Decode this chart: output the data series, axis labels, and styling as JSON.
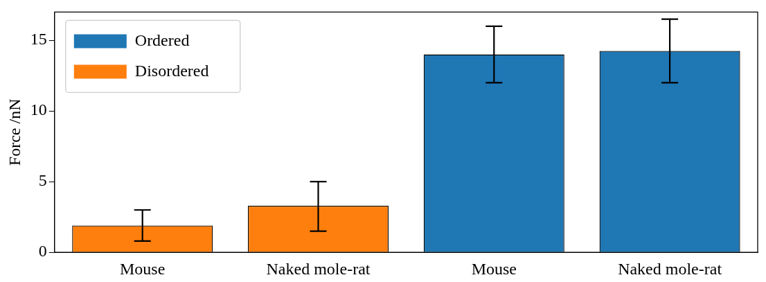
{
  "chart_data": {
    "type": "bar",
    "ylabel": "Force /nN",
    "categories": [
      "Mouse",
      "Naked mole-rat",
      "Mouse",
      "Naked mole-rat"
    ],
    "series": [
      {
        "name": "Ordered",
        "color": "#1f77b4",
        "values": [
          null,
          null,
          14.0,
          14.25
        ],
        "errors": [
          null,
          null,
          [
            12.0,
            16.0
          ],
          [
            12.0,
            16.5
          ]
        ]
      },
      {
        "name": "Disordered",
        "color": "#ff7f0e",
        "values": [
          1.9,
          3.3,
          null,
          null
        ],
        "errors": [
          [
            0.8,
            3.0
          ],
          [
            1.5,
            5.0
          ],
          null,
          null
        ]
      }
    ],
    "ylim": [
      0,
      17
    ],
    "yticks": [
      0,
      5,
      10,
      15
    ],
    "grid": false,
    "legend": "top left"
  }
}
